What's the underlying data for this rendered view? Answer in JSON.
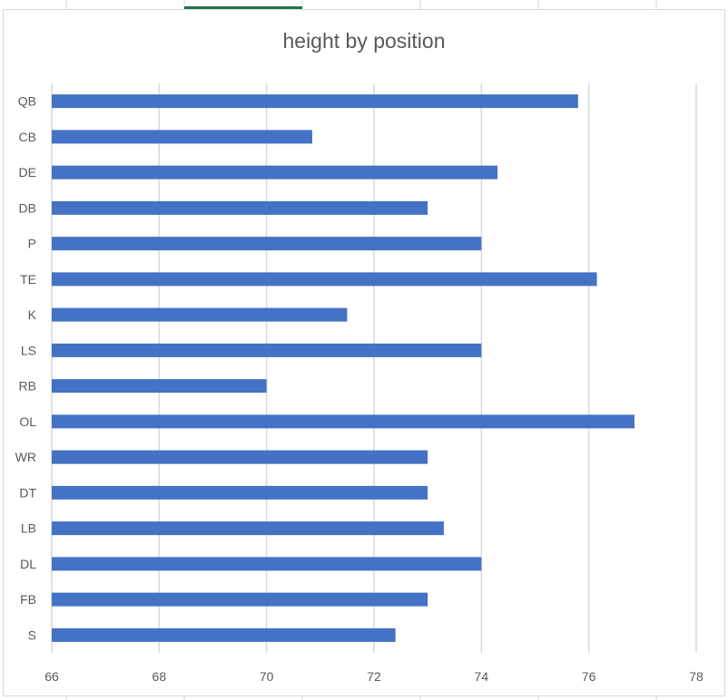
{
  "chart_data": {
    "type": "bar",
    "orientation": "horizontal",
    "title": "height by position",
    "xlabel": "",
    "ylabel": "",
    "categories": [
      "QB",
      "CB",
      "DE",
      "DB",
      "P",
      "TE",
      "K",
      "LS",
      "RB",
      "OL",
      "WR",
      "DT",
      "LB",
      "DL",
      "FB",
      "S"
    ],
    "values": [
      75.8,
      70.85,
      74.3,
      73.0,
      74.0,
      76.15,
      71.5,
      74.0,
      70.0,
      76.85,
      73.0,
      73.0,
      73.3,
      74.0,
      73.0,
      72.4
    ],
    "xlim": [
      66,
      78
    ],
    "xticks": [
      66,
      68,
      70,
      72,
      74,
      76,
      78
    ],
    "grid": "vertical",
    "legend": "none",
    "bar_color": "#4472C4"
  },
  "colors": {
    "bar": "#4472C4",
    "gridline": "#d9d9d9",
    "text": "#595959",
    "active_tab_accent": "#217346"
  }
}
